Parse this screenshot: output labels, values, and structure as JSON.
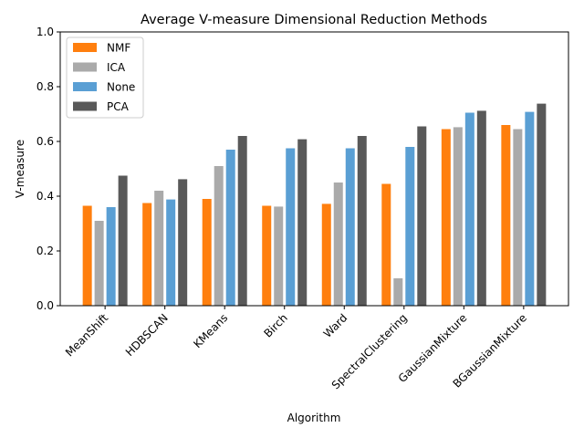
{
  "chart_data": {
    "type": "bar",
    "title": "Average V-measure Dimensional Reduction Methods",
    "xlabel": "Algorithm",
    "ylabel": "V-measure",
    "ylim": [
      0,
      1.0
    ],
    "yticks": [
      "0.0",
      "0.2",
      "0.4",
      "0.6",
      "0.8",
      "1.0"
    ],
    "categories": [
      "MeanShift",
      "HDBSCAN",
      "KMeans",
      "Birch",
      "Ward",
      "SpectralClustering",
      "GaussianMixture",
      "BGaussianMixture"
    ],
    "series": [
      {
        "name": "NMF",
        "color": "#ff7f0e",
        "values": [
          0.365,
          0.375,
          0.39,
          0.365,
          0.372,
          0.445,
          0.645,
          0.66
        ]
      },
      {
        "name": "ICA",
        "color": "#aaaaaa",
        "values": [
          0.31,
          0.42,
          0.51,
          0.362,
          0.45,
          0.1,
          0.652,
          0.645
        ]
      },
      {
        "name": "None",
        "color": "#5a9fd4",
        "values": [
          0.36,
          0.388,
          0.57,
          0.575,
          0.575,
          0.58,
          0.705,
          0.708
        ]
      },
      {
        "name": "PCA",
        "color": "#595959",
        "values": [
          0.475,
          0.462,
          0.62,
          0.608,
          0.62,
          0.655,
          0.712,
          0.738
        ]
      }
    ],
    "legend": "top-left",
    "grid": false
  }
}
